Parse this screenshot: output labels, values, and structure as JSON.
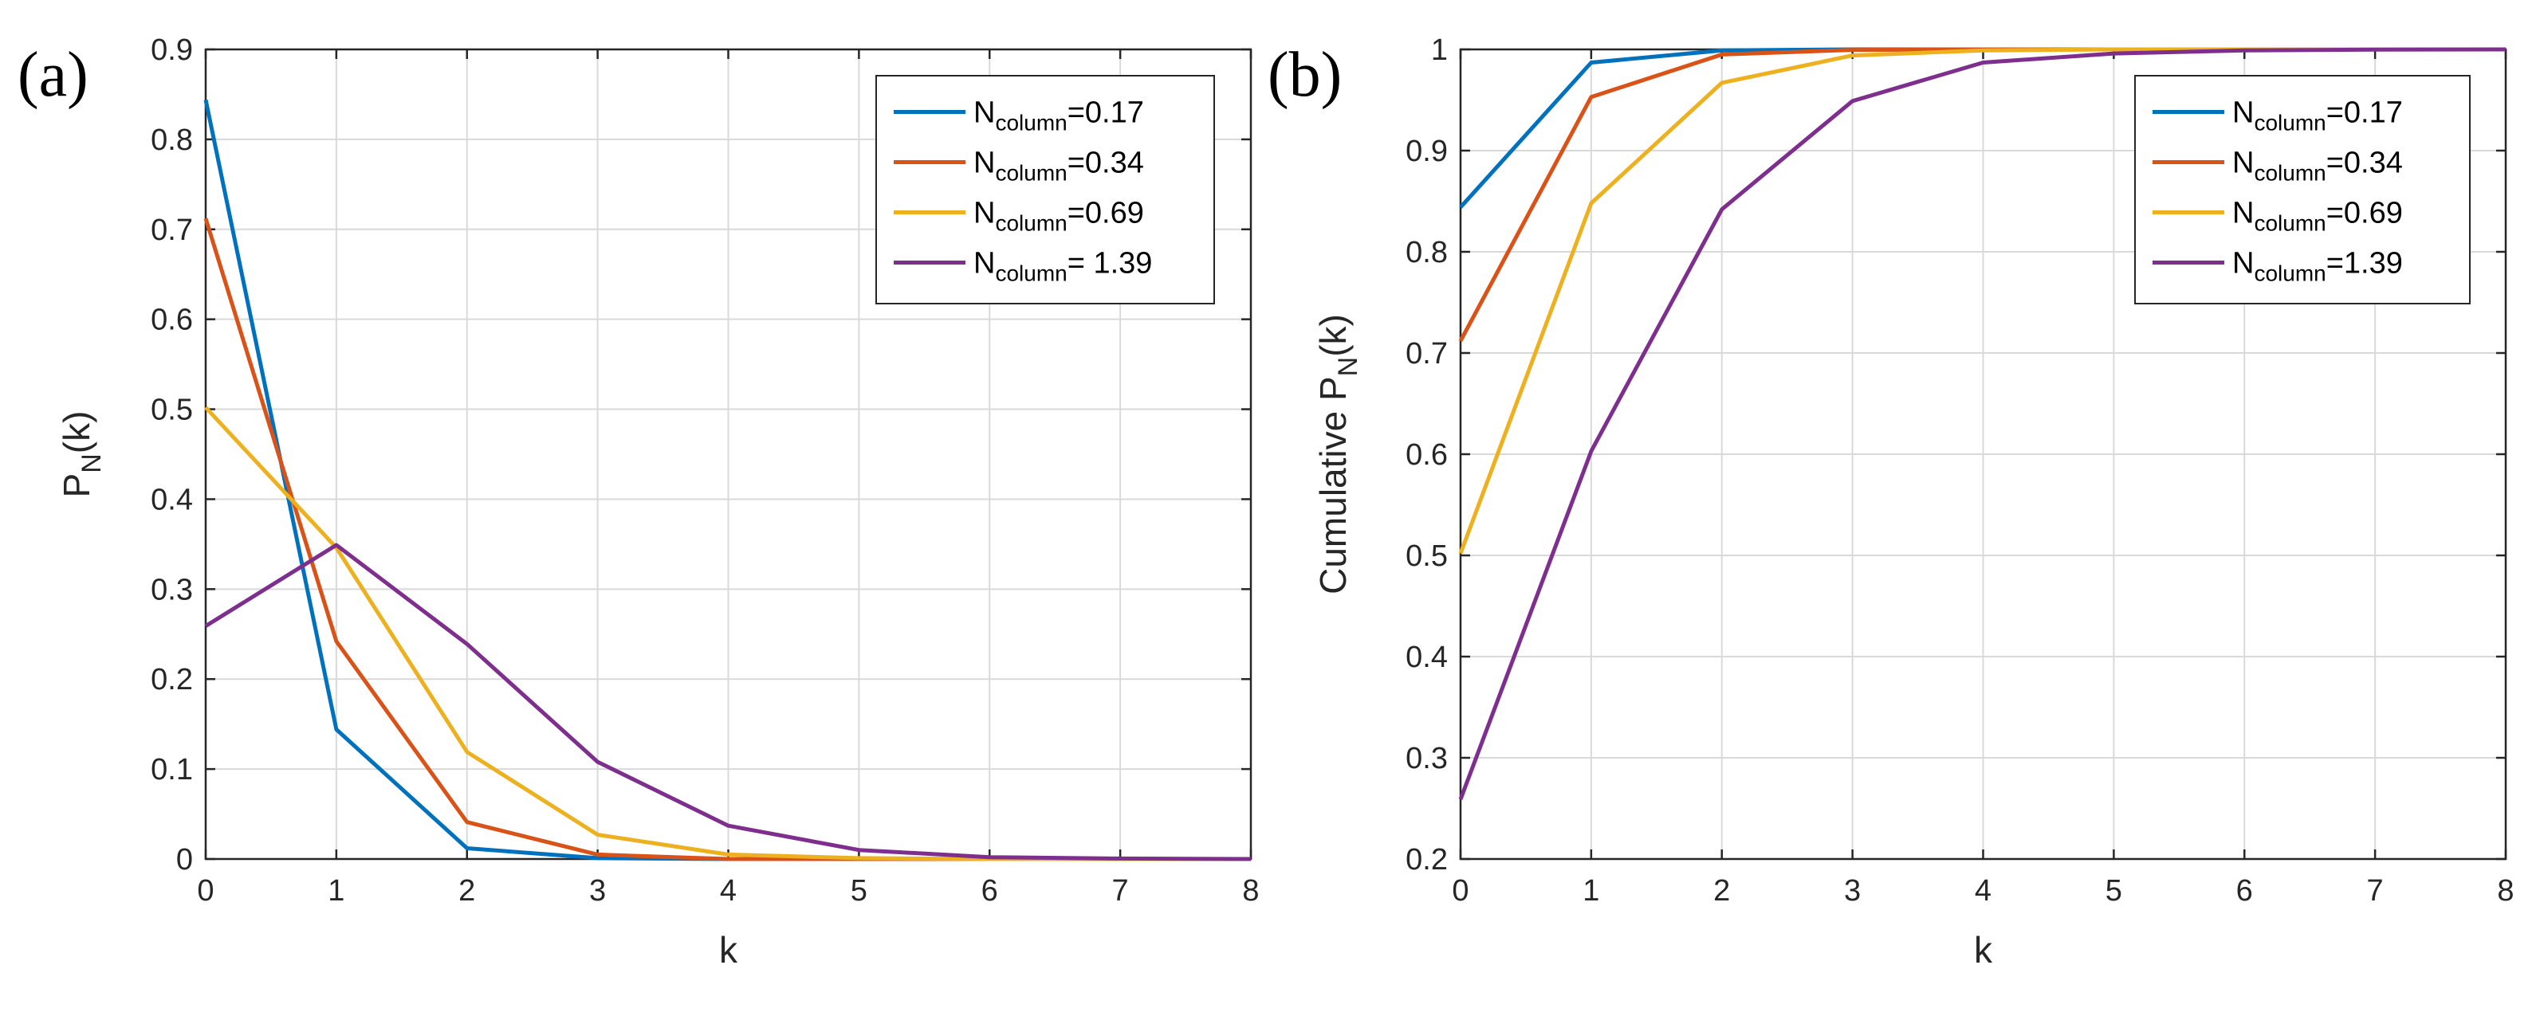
{
  "chart_data": [
    {
      "type": "line",
      "panel_label": "(a)",
      "title": "",
      "xlabel": "k",
      "ylabel": "P",
      "ylabel_sub": "N",
      "ylabel_suffix": "(k)",
      "xlim": [
        0,
        8
      ],
      "ylim": [
        0,
        0.9
      ],
      "xticks": [
        0,
        1,
        2,
        3,
        4,
        5,
        6,
        7,
        8
      ],
      "xtick_labels": [
        "0",
        "1",
        "2",
        "3",
        "4",
        "5",
        "6",
        "7",
        "8"
      ],
      "yticks": [
        0,
        0.1,
        0.2,
        0.3,
        0.4,
        0.5,
        0.6,
        0.7,
        0.8,
        0.9
      ],
      "ytick_labels": [
        "0",
        "0.1",
        "0.2",
        "0.3",
        "0.4",
        "0.5",
        "0.6",
        "0.7",
        "0.8",
        "0.9"
      ],
      "grid": true,
      "legend_position": "top-right",
      "x": [
        0,
        1,
        2,
        3,
        4,
        5,
        6,
        7,
        8
      ],
      "series": [
        {
          "name": "N_column=0.17",
          "legend_main": "N",
          "legend_sub": "column",
          "legend_value": "=0.17",
          "color": "#0072BD",
          "values": [
            0.844,
            0.144,
            0.012,
            0.001,
            0.0,
            0.0,
            0.0,
            0.0,
            0.0
          ]
        },
        {
          "name": "N_column=0.34",
          "legend_main": "N",
          "legend_sub": "column",
          "legend_value": "=0.34",
          "color": "#D95319",
          "values": [
            0.712,
            0.242,
            0.041,
            0.005,
            0.0,
            0.0,
            0.0,
            0.0,
            0.0
          ]
        },
        {
          "name": "N_column=0.69",
          "legend_main": "N",
          "legend_sub": "column",
          "legend_value": "=0.69",
          "color": "#EDB120",
          "values": [
            0.502,
            0.346,
            0.119,
            0.027,
            0.005,
            0.001,
            0.0,
            0.0,
            0.0
          ]
        },
        {
          "name": "N_column= 1.39",
          "legend_main": "N",
          "legend_sub": "column",
          "legend_value": "= 1.39",
          "color": "#7E2F8E",
          "values": [
            0.259,
            0.349,
            0.239,
            0.108,
            0.037,
            0.01,
            0.002,
            0.0005,
            0.0
          ]
        }
      ]
    },
    {
      "type": "line",
      "panel_label": "(b)",
      "title": "",
      "xlabel": "k",
      "ylabel": "Cumulative P",
      "ylabel_sub": "N",
      "ylabel_suffix": "(k)",
      "xlim": [
        0,
        8
      ],
      "ylim": [
        0.2,
        1
      ],
      "xticks": [
        0,
        1,
        2,
        3,
        4,
        5,
        6,
        7,
        8
      ],
      "xtick_labels": [
        "0",
        "1",
        "2",
        "3",
        "4",
        "5",
        "6",
        "7",
        "8"
      ],
      "yticks": [
        0.2,
        0.3,
        0.4,
        0.5,
        0.6,
        0.7,
        0.8,
        0.9,
        1
      ],
      "ytick_labels": [
        "0.2",
        "0.3",
        "0.4",
        "0.5",
        "0.6",
        "0.7",
        "0.8",
        "0.9",
        "1"
      ],
      "grid": true,
      "legend_position": "top-right",
      "x": [
        0,
        1,
        2,
        3,
        4,
        5,
        6,
        7,
        8
      ],
      "series": [
        {
          "name": "N_column=0.17",
          "legend_main": "N",
          "legend_sub": "column",
          "legend_value": "=0.17",
          "color": "#0072BD",
          "values": [
            0.844,
            0.987,
            0.999,
            1.0,
            1.0,
            1.0,
            1.0,
            1.0,
            1.0
          ]
        },
        {
          "name": "N_column=0.34",
          "legend_main": "N",
          "legend_sub": "column",
          "legend_value": "=0.34",
          "color": "#D95319",
          "values": [
            0.712,
            0.953,
            0.995,
            0.9995,
            1.0,
            1.0,
            1.0,
            1.0,
            1.0
          ]
        },
        {
          "name": "N_column=0.69",
          "legend_main": "N",
          "legend_sub": "column",
          "legend_value": "=0.69",
          "color": "#EDB120",
          "values": [
            0.502,
            0.848,
            0.967,
            0.994,
            0.999,
            1.0,
            1.0,
            1.0,
            1.0
          ]
        },
        {
          "name": "N_column=1.39",
          "legend_main": "N",
          "legend_sub": "column",
          "legend_value": "=1.39",
          "color": "#7E2F8E",
          "values": [
            0.259,
            0.603,
            0.842,
            0.949,
            0.987,
            0.996,
            0.999,
            0.9998,
            1.0
          ]
        }
      ]
    }
  ]
}
